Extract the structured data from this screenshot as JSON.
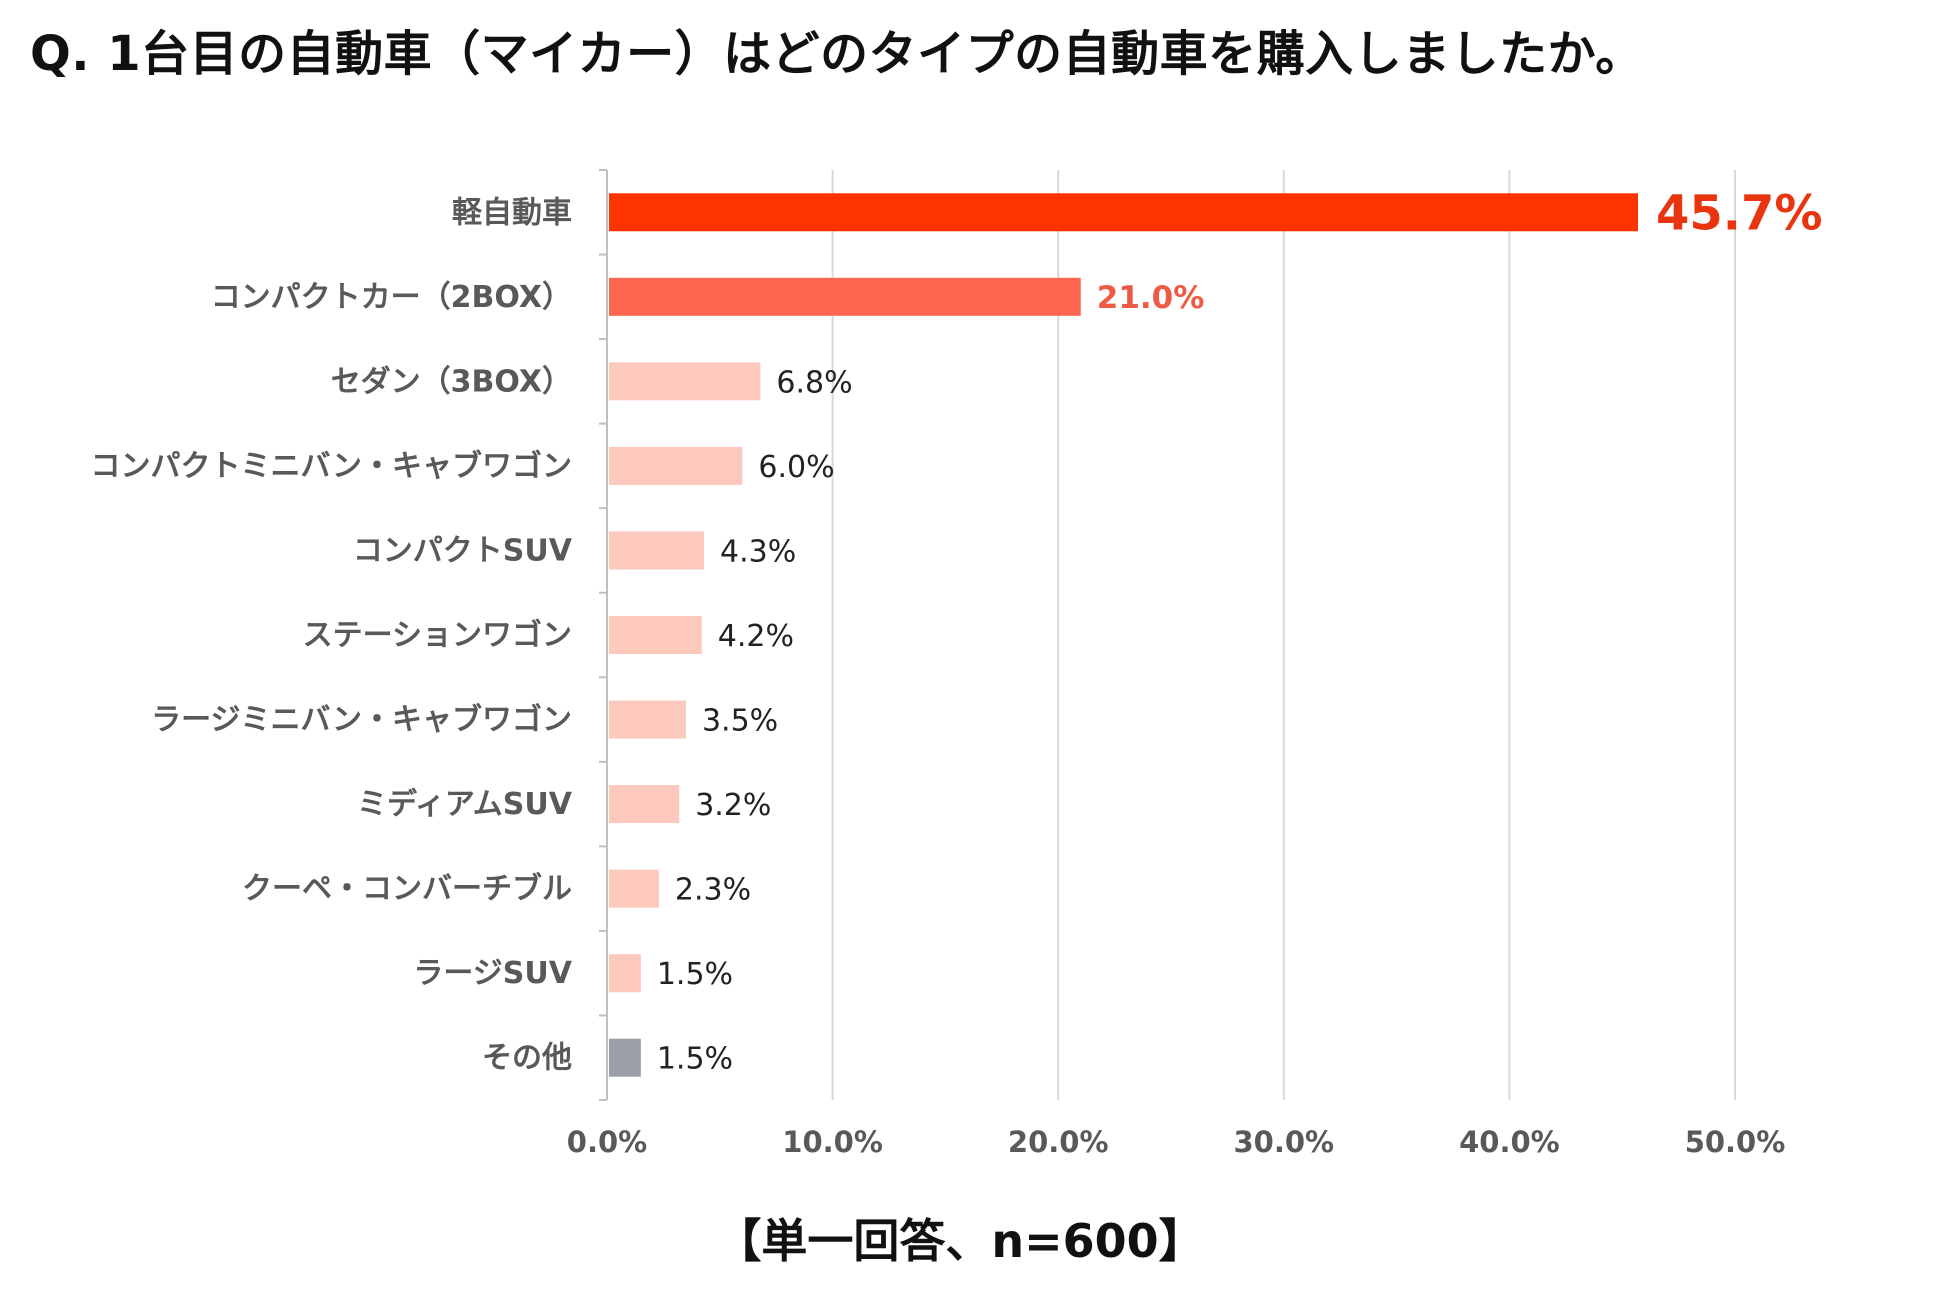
{
  "title": "Q. 1台目の自動車（マイカー）はどのタイプの自動車を購入しましたか。",
  "note": "【単一回答、n=600】",
  "chart_data": {
    "type": "bar",
    "orientation": "horizontal",
    "title": "Q. 1台目の自動車（マイカー）はどのタイプの自動車を購入しましたか。",
    "categories": [
      "軽自動車",
      "コンパクトカー（2BOX）",
      "セダン（3BOX）",
      "コンパクトミニバン・キャブワゴン",
      "コンパクトSUV",
      "ステーションワゴン",
      "ラージミニバン・キャブワゴン",
      "ミディアムSUV",
      "クーペ・コンバーチブル",
      "ラージSUV",
      "その他"
    ],
    "values": [
      45.7,
      21.0,
      6.8,
      6.0,
      4.3,
      4.2,
      3.5,
      3.2,
      2.3,
      1.5,
      1.5
    ],
    "value_labels": [
      "45.7%",
      "21.0%",
      "6.8%",
      "6.0%",
      "4.3%",
      "4.2%",
      "3.5%",
      "3.2%",
      "2.3%",
      "1.5%",
      "1.5%"
    ],
    "bar_colors": [
      "#ff3300",
      "#ff6650",
      "#fdc9bd",
      "#fdc9bd",
      "#fdc9bd",
      "#fdc9bd",
      "#fdc9bd",
      "#fdc9bd",
      "#fdc9bd",
      "#fdc9bd",
      "#9aa0a6"
    ],
    "label_colors": [
      "#e8350f",
      "#ee5a44",
      "#222222",
      "#222222",
      "#222222",
      "#222222",
      "#222222",
      "#222222",
      "#222222",
      "#222222",
      "#222222"
    ],
    "xlim": [
      0,
      50
    ],
    "xticks": [
      "0.0%",
      "10.0%",
      "20.0%",
      "30.0%",
      "40.0%",
      "50.0%"
    ],
    "grid": true,
    "legend": "none"
  }
}
